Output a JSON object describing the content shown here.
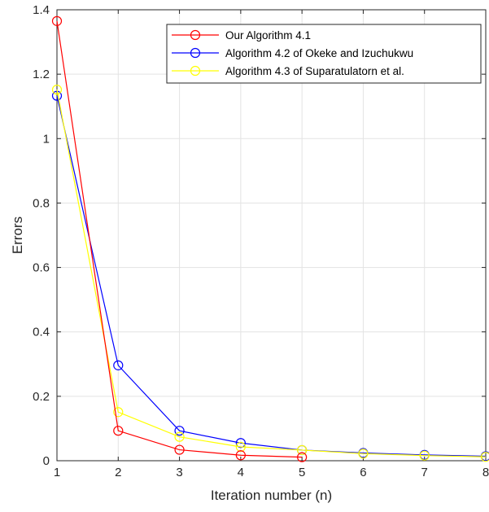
{
  "chart_data": {
    "type": "line",
    "title": "",
    "xlabel": "Iteration number (n)",
    "ylabel": "Errors",
    "xlim": [
      1,
      8
    ],
    "ylim": [
      0,
      1.4
    ],
    "x_ticks": [
      1,
      2,
      3,
      4,
      5,
      6,
      7,
      8
    ],
    "y_ticks": [
      0,
      0.2,
      0.4,
      0.6,
      0.8,
      1,
      1.2,
      1.4
    ],
    "x_tick_labels": [
      "1",
      "2",
      "3",
      "4",
      "5",
      "6",
      "7",
      "8"
    ],
    "y_tick_labels": [
      "0",
      "0.2",
      "0.4",
      "0.6",
      "0.8",
      "1",
      "1.2",
      "1.4"
    ],
    "grid": true,
    "legend_position": "top-right",
    "marker": "circle",
    "series": [
      {
        "name": "Our Algorithm 4.1",
        "color": "#ff0000",
        "x": [
          1,
          2,
          3,
          4,
          5
        ],
        "y": [
          1.365,
          0.093,
          0.034,
          0.017,
          0.011
        ]
      },
      {
        "name": "Algorithm 4.2 of Okeke and Izuchukwu",
        "color": "#0000ff",
        "x": [
          1,
          2,
          3,
          4,
          5,
          6,
          7,
          8
        ],
        "y": [
          1.133,
          0.296,
          0.093,
          0.055,
          0.033,
          0.024,
          0.018,
          0.014
        ]
      },
      {
        "name": "Algorithm 4.3 of Suparatulatorn et al.",
        "color": "#ffff00",
        "x": [
          1,
          2,
          3,
          4,
          5,
          6,
          7,
          8
        ],
        "y": [
          1.152,
          0.151,
          0.074,
          0.043,
          0.033,
          0.022,
          0.016,
          0.012
        ]
      }
    ]
  }
}
